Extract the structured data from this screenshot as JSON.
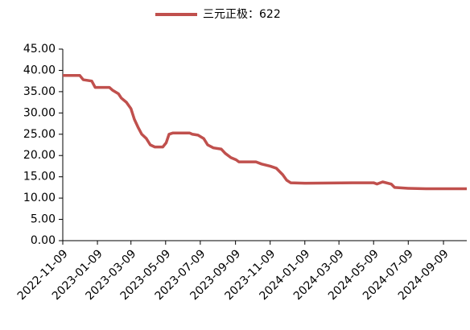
{
  "chart_data": {
    "type": "line",
    "x": [
      "2022-11-09",
      "2022-12-09",
      "2022-12-15",
      "2022-12-30",
      "2023-01-05",
      "2023-01-30",
      "2023-02-05",
      "2023-02-15",
      "2023-02-20",
      "2023-03-01",
      "2023-03-09",
      "2023-03-15",
      "2023-03-22",
      "2023-03-28",
      "2023-04-05",
      "2023-04-12",
      "2023-04-20",
      "2023-05-04",
      "2023-05-10",
      "2023-05-15",
      "2023-05-22",
      "2023-06-20",
      "2023-06-25",
      "2023-07-05",
      "2023-07-15",
      "2023-07-22",
      "2023-08-01",
      "2023-08-15",
      "2023-08-22",
      "2023-09-01",
      "2023-09-10",
      "2023-09-15",
      "2023-10-15",
      "2023-10-25",
      "2023-11-09",
      "2023-11-20",
      "2023-12-01",
      "2023-12-08",
      "2023-12-15",
      "2024-01-09",
      "2024-04-01",
      "2024-05-09",
      "2024-05-15",
      "2024-05-25",
      "2024-06-09",
      "2024-06-15",
      "2024-07-09",
      "2024-08-09",
      "2024-10-20"
    ],
    "series": [
      {
        "name": "三元正极：622",
        "color": "#c0504d",
        "values": [
          38.8,
          38.8,
          37.8,
          37.5,
          36.0,
          36.0,
          35.3,
          34.5,
          33.5,
          32.5,
          31.0,
          28.5,
          26.5,
          25.0,
          24.0,
          22.5,
          22.0,
          22.0,
          23.0,
          25.0,
          25.3,
          25.3,
          25.0,
          24.8,
          24.0,
          22.5,
          21.8,
          21.5,
          20.5,
          19.5,
          19.0,
          18.5,
          18.5,
          18.0,
          17.5,
          17.0,
          15.5,
          14.2,
          13.6,
          13.5,
          13.6,
          13.6,
          13.3,
          13.8,
          13.3,
          12.5,
          12.3,
          12.2,
          12.2
        ]
      }
    ],
    "xlim": [
      "2022-11-09",
      "2024-10-20"
    ],
    "xticks": [
      "2022-11-09",
      "2023-01-09",
      "2023-03-09",
      "2023-05-09",
      "2023-07-09",
      "2023-09-09",
      "2023-11-09",
      "2024-01-09",
      "2024-03-09",
      "2024-05-09",
      "2024-07-09",
      "2024-09-09"
    ],
    "ylim": [
      0,
      45
    ],
    "yticks": [
      {
        "value": 0,
        "label": "0.00"
      },
      {
        "value": 5,
        "label": "5.00"
      },
      {
        "value": 10,
        "label": "10.00"
      },
      {
        "value": 15,
        "label": "15.00"
      },
      {
        "value": 20,
        "label": "20.00"
      },
      {
        "value": 25,
        "label": "25.00"
      },
      {
        "value": 30,
        "label": "30.00"
      },
      {
        "value": 35,
        "label": "35.00"
      },
      {
        "value": 40,
        "label": "40.00"
      },
      {
        "value": 45,
        "label": "45.00"
      }
    ],
    "legend": "top",
    "grid": false
  }
}
